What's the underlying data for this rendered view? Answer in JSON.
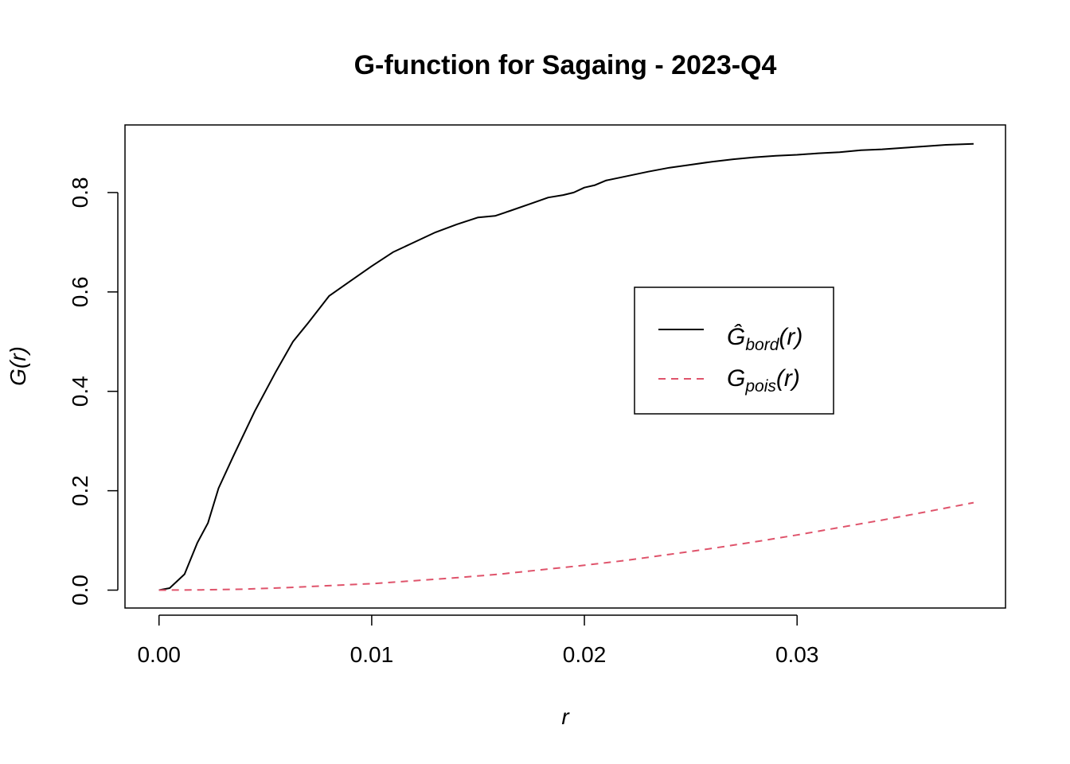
{
  "chart_data": {
    "type": "line",
    "title": "G-function for Sagaing - 2023-Q4",
    "xlabel": "r",
    "ylabel_main": "G",
    "ylabel_arg": "(r)",
    "xlim": [
      -0.0016,
      0.0398
    ],
    "ylim": [
      -0.036,
      0.936
    ],
    "x_ticks": [
      0.0,
      0.01,
      0.02,
      0.03
    ],
    "x_tick_labels": [
      "0.00",
      "0.01",
      "0.02",
      "0.03"
    ],
    "y_ticks": [
      0.0,
      0.2,
      0.4,
      0.6,
      0.8
    ],
    "y_tick_labels": [
      "0.0",
      "0.2",
      "0.4",
      "0.6",
      "0.8"
    ],
    "grid": false,
    "legend_position": "center-right",
    "series": [
      {
        "name_main": "Ĝ",
        "name_sub": "bord",
        "name_arg": "(r)",
        "color": "#000000",
        "dash": "solid",
        "x": [
          0,
          0.0005,
          0.0012,
          0.0018,
          0.0023,
          0.0028,
          0.0035,
          0.0045,
          0.0055,
          0.0063,
          0.007,
          0.008,
          0.009,
          0.01,
          0.011,
          0.012,
          0.013,
          0.014,
          0.015,
          0.0158,
          0.0165,
          0.0175,
          0.0183,
          0.019,
          0.0195,
          0.02,
          0.0205,
          0.021,
          0.022,
          0.023,
          0.024,
          0.025,
          0.026,
          0.027,
          0.028,
          0.029,
          0.03,
          0.031,
          0.032,
          0.033,
          0.034,
          0.035,
          0.036,
          0.037,
          0.0383
        ],
        "y": [
          0.0,
          0.004,
          0.032,
          0.095,
          0.135,
          0.205,
          0.27,
          0.36,
          0.44,
          0.5,
          0.537,
          0.592,
          0.622,
          0.652,
          0.68,
          0.7,
          0.72,
          0.736,
          0.75,
          0.753,
          0.763,
          0.778,
          0.79,
          0.795,
          0.8,
          0.81,
          0.815,
          0.824,
          0.833,
          0.842,
          0.85,
          0.856,
          0.862,
          0.867,
          0.871,
          0.874,
          0.876,
          0.879,
          0.881,
          0.885,
          0.887,
          0.89,
          0.893,
          0.896,
          0.898
        ]
      },
      {
        "name_main": "G",
        "name_sub": "pois",
        "name_arg": "(r)",
        "color": "#DF536B",
        "dash": "dashed",
        "x": [
          0,
          0.002,
          0.004,
          0.006,
          0.008,
          0.01,
          0.012,
          0.014,
          0.016,
          0.018,
          0.02,
          0.022,
          0.024,
          0.026,
          0.028,
          0.03,
          0.032,
          0.034,
          0.036,
          0.0383
        ],
        "y": [
          0.0,
          0.0005,
          0.002,
          0.005,
          0.009,
          0.013,
          0.019,
          0.025,
          0.032,
          0.041,
          0.05,
          0.06,
          0.072,
          0.084,
          0.097,
          0.111,
          0.126,
          0.141,
          0.157,
          0.176
        ]
      }
    ]
  }
}
